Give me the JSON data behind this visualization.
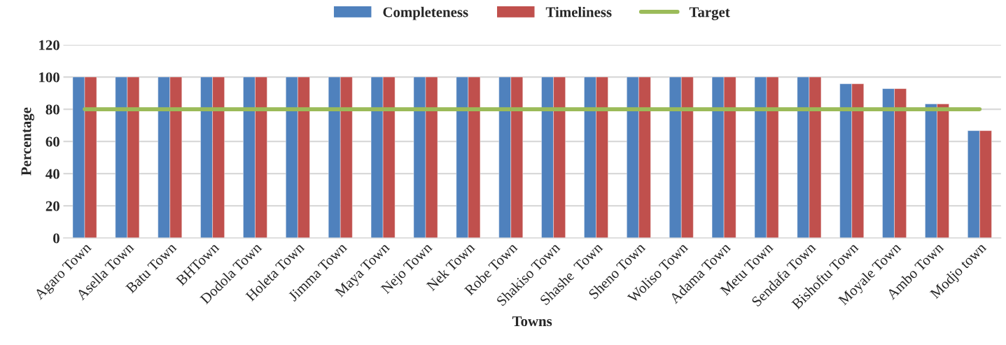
{
  "chart_data": {
    "type": "bar",
    "xlabel": "Towns",
    "ylabel": "Percentage",
    "categories": [
      "Agaro Town",
      "Asella Town",
      "Batu Town",
      "BHTown",
      "Dodola Town",
      "Holeta Town",
      "Jimma Town",
      "Maya Town",
      "Nejo Town",
      "Nek Town",
      "Robe Town",
      "Shakiso Town",
      "Shashe  Town",
      "Sheno Town",
      "Woliso Town",
      "Adama Town",
      "Metu Town",
      "Sendafa Town",
      "Bishoftu Town",
      "Moyale Town",
      "Ambo Town",
      "Modjo town"
    ],
    "series": [
      {
        "name": "Completeness",
        "color": "#4f81bd",
        "values": [
          100,
          100,
          100,
          100,
          100,
          100,
          100,
          100,
          100,
          100,
          100,
          100,
          100,
          100,
          100,
          100,
          100,
          100,
          95.8,
          92.8,
          83.3,
          66.7
        ]
      },
      {
        "name": "Timeliness",
        "color": "#c0504d",
        "values": [
          100,
          100,
          100,
          100,
          100,
          100,
          100,
          100,
          100,
          100,
          100,
          100,
          100,
          100,
          100,
          100,
          100,
          100,
          95.8,
          92.8,
          83.3,
          66.7
        ]
      },
      {
        "name": "Target",
        "type": "line",
        "color": "#9bbb59",
        "values": [
          80,
          80,
          80,
          80,
          80,
          80,
          80,
          80,
          80,
          80,
          80,
          80,
          80,
          80,
          80,
          80,
          80,
          80,
          80,
          80,
          80,
          80
        ]
      }
    ],
    "ylim": [
      0,
      120
    ],
    "yticks": [
      0,
      20,
      40,
      60,
      80,
      100,
      120
    ],
    "grid": "y",
    "legend": "top"
  }
}
